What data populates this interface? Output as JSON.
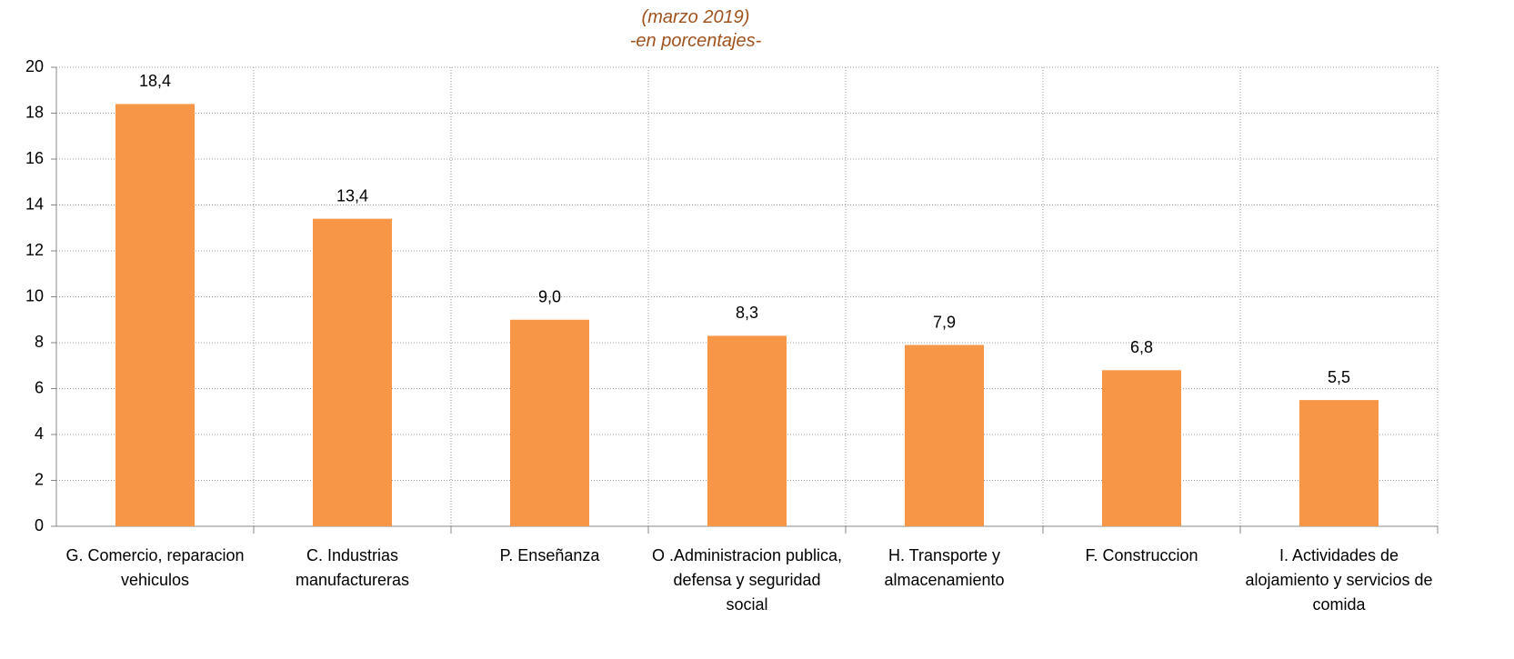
{
  "chart_data": {
    "type": "bar",
    "title": "(marzo 2019)",
    "subtitle": "-en porcentajes-",
    "categories": [
      "G. Comercio, reparacion vehiculos",
      "C. Industrias manufactureras",
      "P. Enseñanza",
      "O .Administracion publica, defensa y seguridad social",
      "H. Transporte y almacenamiento",
      "F. Construccion",
      "I. Actividades de alojamiento y servicios de comida"
    ],
    "values": [
      18.4,
      13.4,
      9.0,
      8.3,
      7.9,
      6.8,
      5.5
    ],
    "value_labels": [
      "18,4",
      "13,4",
      "9,0",
      "8,3",
      "7,9",
      "6,8",
      "5,5"
    ],
    "color": "#f79646",
    "ylim": [
      0,
      20
    ],
    "yticks": [
      0,
      2,
      4,
      6,
      8,
      10,
      12,
      14,
      16,
      18,
      20
    ],
    "grid": true
  }
}
